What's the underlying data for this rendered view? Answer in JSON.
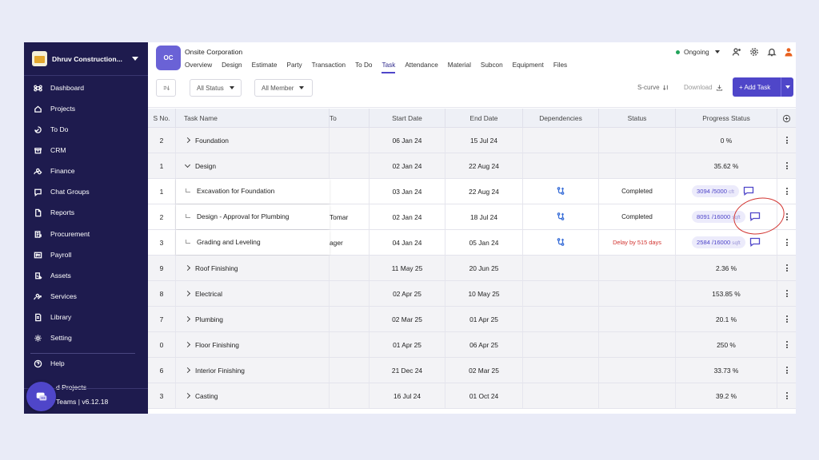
{
  "sidebar": {
    "company": "Dhruv Construction...",
    "items": [
      {
        "label": "Dashboard",
        "icon": "command-icon"
      },
      {
        "label": "Projects",
        "icon": "home-icon"
      },
      {
        "label": "To Do",
        "icon": "todo-icon"
      },
      {
        "label": "CRM",
        "icon": "crm-icon"
      },
      {
        "label": "Finance",
        "icon": "finance-icon"
      },
      {
        "label": "Chat Groups",
        "icon": "chat-icon"
      },
      {
        "label": "Reports",
        "icon": "report-icon"
      },
      {
        "label": "Procurement",
        "icon": "procurement-icon"
      },
      {
        "label": "Payroll",
        "icon": "payroll-icon"
      },
      {
        "label": "Assets",
        "icon": "assets-icon"
      },
      {
        "label": "Services",
        "icon": "services-icon"
      },
      {
        "label": "Library",
        "icon": "library-icon"
      },
      {
        "label": "Setting",
        "icon": "gear-icon"
      }
    ],
    "help": "Help",
    "partial_item": "d Projects",
    "footer": "Teams | v6.12.18"
  },
  "header": {
    "org_initials": "OC",
    "org_name": "Onsite Corporation",
    "tabs": [
      "Overview",
      "Design",
      "Estimate",
      "Party",
      "Transaction",
      "To Do",
      "Task",
      "Attendance",
      "Material",
      "Subcon",
      "Equipment",
      "Files"
    ],
    "active_tab": "Task",
    "status": "Ongoing"
  },
  "toolbar": {
    "status_filter": "All Status",
    "member_filter": "All Member",
    "scurve": "S-curve",
    "download": "Download",
    "add_task": "+ Add Task"
  },
  "table": {
    "columns": [
      "S No.",
      "Task Name",
      "To",
      "Start Date",
      "End Date",
      "Dependencies",
      "Status",
      "Progress Status"
    ],
    "rows": [
      {
        "sno": "2",
        "name": "Foundation",
        "to": "",
        "start": "06 Jan 24",
        "end": "15 Jul 24",
        "status": "",
        "progress": "0 %",
        "type": "parent",
        "expanded": false
      },
      {
        "sno": "1",
        "name": "Design",
        "to": "",
        "start": "02 Jan 24",
        "end": "22 Aug 24",
        "status": "",
        "progress": "35.62 %",
        "type": "parent",
        "expanded": true
      },
      {
        "sno": "1",
        "name": "Excavation for Foundation",
        "to": "",
        "start": "03 Jan 24",
        "end": "22 Aug 24",
        "status": "Completed",
        "progress_value": "3094 /5000",
        "unit": "cft",
        "type": "child"
      },
      {
        "sno": "2",
        "name": "Design - Approval for Plumbing",
        "to": "Tomar",
        "start": "02 Jan 24",
        "end": "18 Jul 24",
        "status": "Completed",
        "progress_value": "8091 /16000",
        "unit": "sqft",
        "type": "child"
      },
      {
        "sno": "3",
        "name": "Grading and Leveling",
        "to": "ager",
        "start": "04 Jan 24",
        "end": "05 Jan 24",
        "status": "Delay by 515 days",
        "progress_value": "2584 /16000",
        "unit": "sqft",
        "type": "child"
      },
      {
        "sno": "9",
        "name": "Roof Finishing",
        "to": "",
        "start": "11 May 25",
        "end": "20 Jun 25",
        "status": "",
        "progress": "2.36 %",
        "type": "parent",
        "expanded": false
      },
      {
        "sno": "8",
        "name": "Electrical",
        "to": "",
        "start": "02 Apr 25",
        "end": "10 May 25",
        "status": "",
        "progress": "153.85 %",
        "type": "parent",
        "expanded": false
      },
      {
        "sno": "7",
        "name": "Plumbing",
        "to": "",
        "start": "02 Mar 25",
        "end": "01 Apr 25",
        "status": "",
        "progress": "20.1 %",
        "type": "parent",
        "expanded": false
      },
      {
        "sno": "0",
        "name": "Floor Finishing",
        "to": "",
        "start": "01 Apr 25",
        "end": "06 Apr 25",
        "status": "",
        "progress": "250 %",
        "type": "parent",
        "expanded": false
      },
      {
        "sno": "6",
        "name": "Interior Finishing",
        "to": "",
        "start": "21 Dec 24",
        "end": "02 Mar 25",
        "status": "",
        "progress": "33.73 %",
        "type": "parent",
        "expanded": false
      },
      {
        "sno": "3",
        "name": "Casting",
        "to": "",
        "start": "16 Jul 24",
        "end": "01 Oct 24",
        "status": "",
        "progress": "39.2 %",
        "type": "parent",
        "expanded": false
      }
    ]
  },
  "colors": {
    "sidebar_bg": "#1e1b4e",
    "accent": "#4f46c9",
    "status_green": "#22a35a",
    "delay_red": "#d2332f",
    "annotation_red": "#d2332f"
  }
}
